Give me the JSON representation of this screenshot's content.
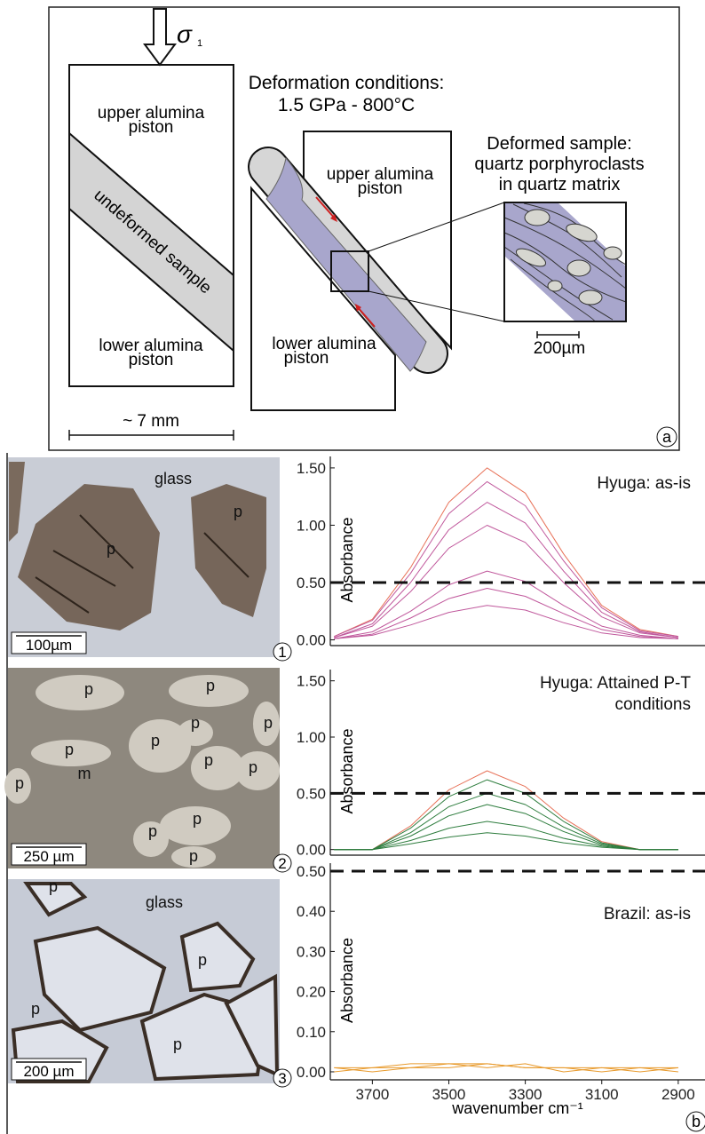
{
  "panel_a": {
    "sigma": "σ",
    "sigma_sub": "1",
    "left_upper_piston": [
      "upper alumina",
      "piston"
    ],
    "undeformed": "undeformed sample",
    "left_lower_piston": [
      "lower alumina",
      "piston"
    ],
    "scale_left": "~ 7 mm",
    "conditions": [
      "Deformation conditions:",
      "1.5 GPa - 800°C"
    ],
    "right_upper_piston": [
      "upper alumina",
      "piston"
    ],
    "right_lower_piston": [
      "lower alumina",
      "piston"
    ],
    "deformed": [
      "Deformed sample:",
      "quartz porphyroclasts",
      "in quartz matrix"
    ],
    "scale_inset": "200µm",
    "label": "a"
  },
  "photos": [
    {
      "labels": [
        "glass",
        "p",
        "p"
      ],
      "scale": "100µm",
      "number": "1"
    },
    {
      "labels": [
        "p",
        "p",
        "p",
        "p",
        "p",
        "p",
        "p",
        "p",
        "m",
        "p",
        "p",
        "p",
        "p"
      ],
      "scale": "250 µm",
      "number": "2"
    },
    {
      "labels": [
        "p",
        "glass",
        "p",
        "p",
        "p"
      ],
      "scale": "200 µm",
      "number": "3"
    }
  ],
  "panel_b_label": "b",
  "chart_data": [
    {
      "type": "line",
      "title": "Hyuga: as-is",
      "y_label": "Absorbance",
      "x": [
        3800,
        3700,
        3600,
        3500,
        3400,
        3300,
        3200,
        3100,
        3000,
        2900
      ],
      "xlim": [
        3810,
        2830
      ],
      "ylim": [
        -0.05,
        1.6
      ],
      "yticks": [
        {
          "value": 0,
          "label": "0.00"
        },
        {
          "value": 0.5,
          "label": "0.50"
        },
        {
          "value": 1,
          "label": "1.00"
        },
        {
          "value": 1.5,
          "label": "1.50"
        }
      ],
      "reference_line": 0.5,
      "series": [
        {
          "color": "#e8735a",
          "values": [
            0.03,
            0.18,
            0.63,
            1.2,
            1.5,
            1.28,
            0.75,
            0.3,
            0.09,
            0.03
          ]
        },
        {
          "color": "#c0589c",
          "values": [
            0.03,
            0.17,
            0.58,
            1.1,
            1.38,
            1.17,
            0.69,
            0.28,
            0.08,
            0.03
          ]
        },
        {
          "color": "#c0589c",
          "values": [
            0.02,
            0.14,
            0.5,
            0.96,
            1.2,
            1.02,
            0.6,
            0.24,
            0.07,
            0.02
          ]
        },
        {
          "color": "#c0589c",
          "values": [
            0.02,
            0.12,
            0.42,
            0.8,
            1.0,
            0.85,
            0.5,
            0.2,
            0.06,
            0.02
          ]
        },
        {
          "color": "#c0589c",
          "values": [
            0.01,
            0.07,
            0.25,
            0.48,
            0.6,
            0.51,
            0.3,
            0.12,
            0.04,
            0.01
          ]
        },
        {
          "color": "#c0589c",
          "values": [
            0.01,
            0.05,
            0.19,
            0.36,
            0.45,
            0.38,
            0.23,
            0.09,
            0.03,
            0.01
          ]
        },
        {
          "color": "#c0589c",
          "values": [
            0.01,
            0.04,
            0.13,
            0.24,
            0.3,
            0.26,
            0.15,
            0.06,
            0.02,
            0.01
          ]
        }
      ]
    },
    {
      "type": "line",
      "title": "Hyuga: Attained P-T conditions",
      "y_label": "Absorbance",
      "x": [
        3800,
        3700,
        3600,
        3500,
        3400,
        3300,
        3200,
        3100,
        3000,
        2900
      ],
      "xlim": [
        3810,
        2830
      ],
      "ylim": [
        -0.05,
        1.6
      ],
      "yticks": [
        {
          "value": 0,
          "label": "0.00"
        },
        {
          "value": 0.5,
          "label": "0.50"
        },
        {
          "value": 1,
          "label": "1.00"
        },
        {
          "value": 1.5,
          "label": "1.50"
        }
      ],
      "reference_line": 0.5,
      "series": [
        {
          "color": "#e8735a",
          "values": [
            0,
            0,
            0.21,
            0.53,
            0.7,
            0.56,
            0.28,
            0.07,
            0,
            0
          ]
        },
        {
          "color": "#2e7d3e",
          "values": [
            0,
            0,
            0.19,
            0.47,
            0.62,
            0.5,
            0.25,
            0.06,
            0,
            0
          ]
        },
        {
          "color": "#2e7d3e",
          "values": [
            0,
            0,
            0.15,
            0.38,
            0.5,
            0.4,
            0.2,
            0.05,
            0,
            0
          ]
        },
        {
          "color": "#2e7d3e",
          "values": [
            0,
            0,
            0.12,
            0.3,
            0.4,
            0.32,
            0.16,
            0.04,
            0,
            0
          ]
        },
        {
          "color": "#2e7d3e",
          "values": [
            0,
            0,
            0.08,
            0.19,
            0.25,
            0.2,
            0.1,
            0.03,
            0,
            0
          ]
        },
        {
          "color": "#2e7d3e",
          "values": [
            0,
            0,
            0.05,
            0.11,
            0.15,
            0.12,
            0.06,
            0.02,
            0,
            0
          ]
        }
      ]
    },
    {
      "type": "line",
      "title": "Brazil: as-is",
      "y_label": "Absorbance",
      "x_label": "wavenumber cm⁻¹",
      "x": [
        3800,
        3700,
        3600,
        3500,
        3400,
        3300,
        3200,
        3100,
        3000,
        2900
      ],
      "xlim": [
        3810,
        2830
      ],
      "ylim": [
        -0.02,
        0.52
      ],
      "xticks": [
        3700,
        3500,
        3300,
        3100,
        2900
      ],
      "yticks": [
        {
          "value": 0,
          "label": "0.00"
        },
        {
          "value": 0.1,
          "label": "0.10"
        },
        {
          "value": 0.2,
          "label": "0.20"
        },
        {
          "value": 0.3,
          "label": "0.30"
        },
        {
          "value": 0.4,
          "label": "0.40"
        },
        {
          "value": 0.5,
          "label": "0.50"
        }
      ],
      "reference_line": 0.5,
      "series": [
        {
          "color": "#e89a2c",
          "values": [
            0.01,
            0.01,
            0.02,
            0.02,
            0.02,
            0.01,
            0.01,
            0.01,
            0.01,
            0.01
          ]
        },
        {
          "color": "#e89a2c",
          "values": [
            0.0,
            0.01,
            0.01,
            0.01,
            0.02,
            0.01,
            0.01,
            0.0,
            0.01,
            0.0
          ]
        },
        {
          "color": "#e89a2c",
          "values": [
            0.01,
            0.0,
            0.01,
            0.02,
            0.01,
            0.02,
            0.0,
            0.01,
            0.0,
            0.01
          ]
        }
      ]
    }
  ]
}
